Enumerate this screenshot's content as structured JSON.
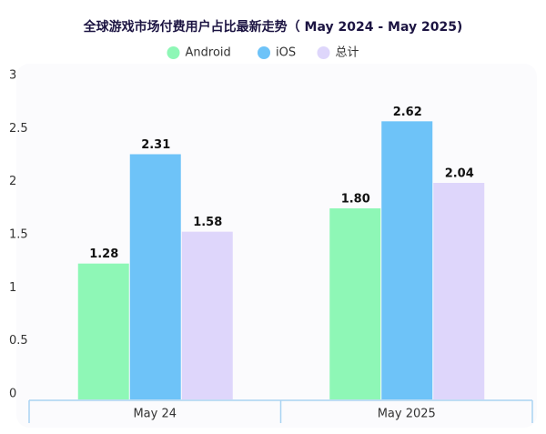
{
  "chart_data": {
    "type": "bar",
    "title": "全球游戏市场付费用户占比最新走势（ May 2024 - May 2025)",
    "categories": [
      "May 24",
      "May 2025"
    ],
    "series": [
      {
        "name": "Android",
        "color": "#8ef7b6",
        "values": [
          1.28,
          1.8
        ],
        "value_labels": [
          "1.28",
          "1.80"
        ]
      },
      {
        "name": "iOS",
        "color": "#6ec3f8",
        "values": [
          2.31,
          2.62
        ],
        "value_labels": [
          "2.31",
          "2.62"
        ]
      },
      {
        "name": "总计",
        "color": "#ded6fb",
        "values": [
          1.58,
          2.04
        ],
        "value_labels": [
          "1.58",
          "2.04"
        ]
      }
    ],
    "ylim": [
      0,
      3
    ],
    "yticks": [
      0,
      0.5,
      1,
      1.5,
      2,
      2.5,
      3
    ],
    "legend": "top"
  }
}
